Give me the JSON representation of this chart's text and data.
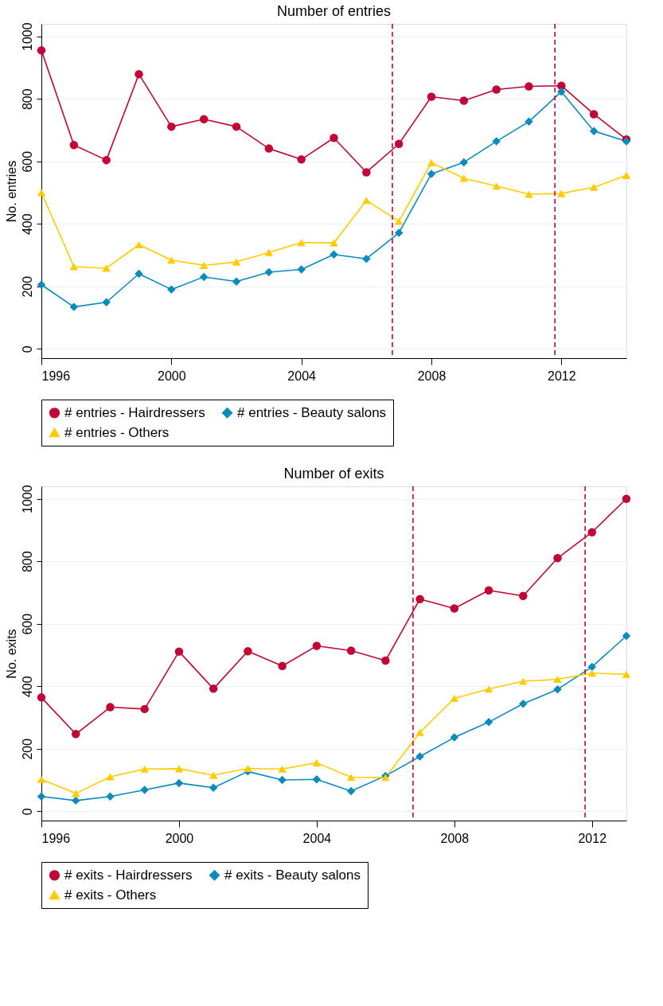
{
  "chart_data": [
    {
      "type": "line",
      "title": "Number of entries",
      "ylabel": "No. entries",
      "x": [
        1996,
        1997,
        1998,
        1999,
        2000,
        2001,
        2002,
        2003,
        2004,
        2005,
        2006,
        2007,
        2008,
        2009,
        2010,
        2011,
        2012,
        2013,
        2014
      ],
      "xlim": [
        1996,
        2014
      ],
      "xticks": [
        1996,
        2000,
        2004,
        2008,
        2012
      ],
      "ylim": [
        -30,
        1040
      ],
      "yticks": [
        0,
        200,
        400,
        600,
        800,
        1000
      ],
      "grid": "y",
      "legend": "bottom",
      "line_style": "solid",
      "series": [
        {
          "name": "# entries - Hairdressers",
          "color": "#c10534",
          "marker": "circle",
          "values": [
            955,
            652,
            604,
            879,
            711,
            735,
            711,
            641,
            606,
            675,
            565,
            656,
            807,
            794,
            830,
            840,
            842,
            751,
            670
          ]
        },
        {
          "name": "# entries - Beauty salons",
          "color": "#0a8bbd",
          "marker": "diamond",
          "values": [
            205,
            134,
            149,
            240,
            190,
            230,
            215,
            245,
            254,
            302,
            288,
            371,
            560,
            597,
            664,
            727,
            823,
            697,
            664
          ]
        },
        {
          "name": "# entries - Others",
          "color": "#ffcc00",
          "marker": "triangle",
          "values": [
            500,
            263,
            258,
            333,
            284,
            267,
            278,
            308,
            340,
            339,
            475,
            408,
            596,
            546,
            521,
            495,
            497,
            517,
            555
          ]
        }
      ],
      "ref_lines": [
        {
          "axis": "x",
          "value": 2006.8,
          "color": "#c10534",
          "line_style": "dashed"
        },
        {
          "axis": "x",
          "value": 2011.8,
          "color": "#c10534",
          "line_style": "dashed"
        }
      ]
    },
    {
      "type": "line",
      "title": "Number of exits",
      "ylabel": "No. exits",
      "x": [
        1996,
        1997,
        1998,
        1999,
        2000,
        2001,
        2002,
        2003,
        2004,
        2005,
        2006,
        2007,
        2008,
        2009,
        2010,
        2011,
        2012,
        2013
      ],
      "xlim": [
        1996,
        2013
      ],
      "xticks": [
        1996,
        2000,
        2004,
        2008,
        2012
      ],
      "ylim": [
        -30,
        1040
      ],
      "yticks": [
        0,
        200,
        400,
        600,
        800,
        1000
      ],
      "grid": "y",
      "legend": "bottom",
      "line_style": "solid",
      "series": [
        {
          "name": "# exits - Hairdressers",
          "color": "#c10534",
          "marker": "circle",
          "values": [
            364,
            247,
            333,
            327,
            511,
            392,
            512,
            465,
            529,
            514,
            482,
            679,
            649,
            707,
            689,
            810,
            893,
            1000
          ]
        },
        {
          "name": "# exits - Beauty salons",
          "color": "#0a8bbd",
          "marker": "diamond",
          "values": [
            47,
            34,
            47,
            68,
            90,
            75,
            127,
            100,
            102,
            64,
            113,
            175,
            236,
            285,
            344,
            390,
            462,
            561
          ]
        },
        {
          "name": "# exits - Others",
          "color": "#ffcc00",
          "marker": "triangle",
          "values": [
            102,
            57,
            110,
            135,
            136,
            115,
            137,
            135,
            155,
            109,
            108,
            252,
            361,
            391,
            416,
            422,
            442,
            438
          ]
        }
      ],
      "ref_lines": [
        {
          "axis": "x",
          "value": 2006.8,
          "color": "#c10534",
          "line_style": "dashed"
        },
        {
          "axis": "x",
          "value": 2011.8,
          "color": "#c10534",
          "line_style": "dashed"
        }
      ]
    }
  ]
}
